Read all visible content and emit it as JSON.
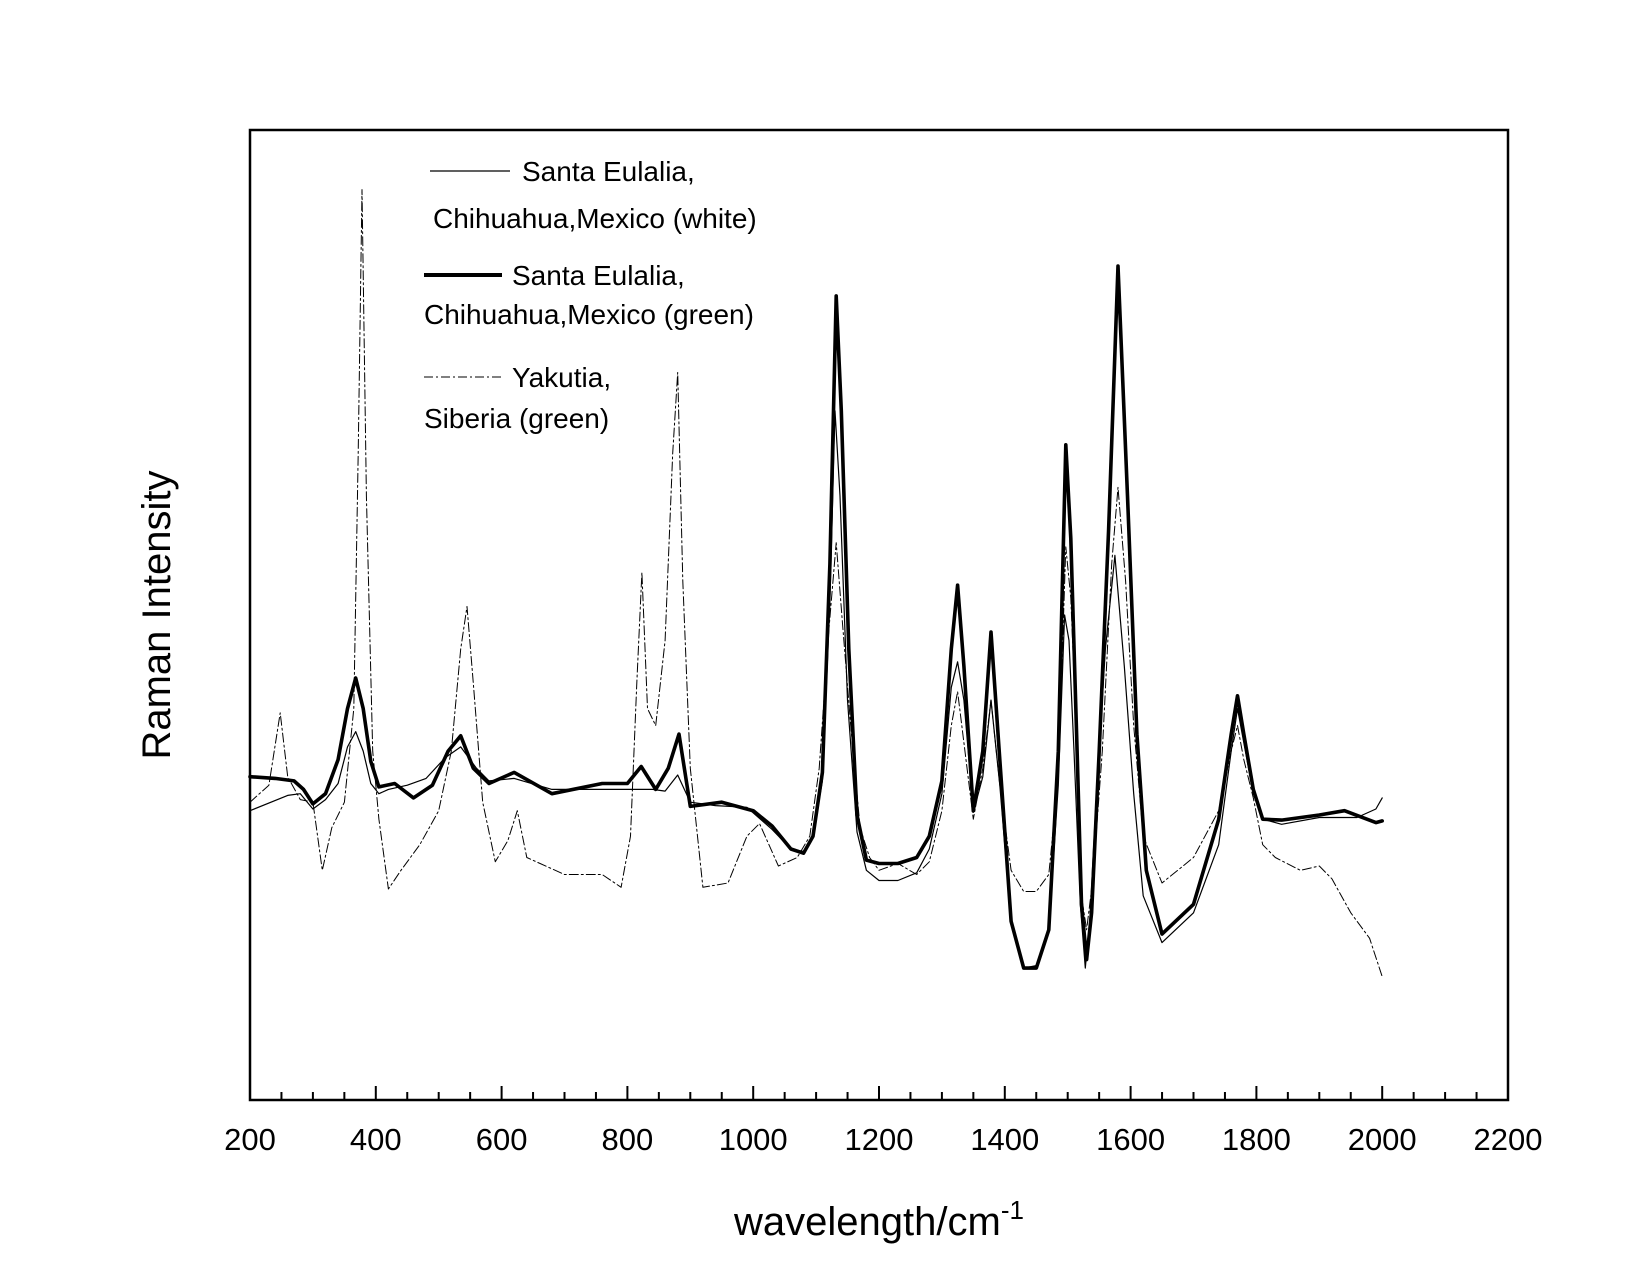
{
  "chart_data": {
    "type": "line",
    "title": "",
    "xlabel": "wavelength/cm",
    "xlabel_superscript": "-1",
    "ylabel": "Raman Intensity",
    "xlim": [
      200,
      2200
    ],
    "ylim": [
      -110,
      1030
    ],
    "x_ticks": [
      200,
      400,
      600,
      800,
      1000,
      1200,
      1400,
      1600,
      1800,
      2000,
      2200
    ],
    "x_minor_tick_step": 50,
    "y_tick_labels": false,
    "grid": false,
    "legend_position": "top-left",
    "series": [
      {
        "name": "Santa Eulalia, Chihuahua,Mexico (white)",
        "legend_lines": [
          "Santa Eulalia,",
          "Chihuahua,Mexico (white)"
        ],
        "style": "thin",
        "color": "#000000",
        "x": [
          200,
          260,
          280,
          300,
          320,
          340,
          355,
          368,
          380,
          392,
          405,
          420,
          450,
          480,
          510,
          535,
          560,
          580,
          620,
          680,
          750,
          800,
          840,
          860,
          880,
          900,
          940,
          990,
          1030,
          1060,
          1080,
          1095,
          1110,
          1122,
          1130,
          1138,
          1150,
          1165,
          1180,
          1200,
          1230,
          1260,
          1280,
          1300,
          1315,
          1325,
          1335,
          1350,
          1365,
          1378,
          1392,
          1410,
          1430,
          1450,
          1470,
          1485,
          1495,
          1502,
          1510,
          1520,
          1528,
          1535,
          1545,
          1560,
          1575,
          1590,
          1605,
          1620,
          1650,
          1700,
          1740,
          1760,
          1770,
          1780,
          1795,
          1810,
          1840,
          1900,
          1960,
          1990,
          2000
        ],
        "y": [
          230,
          248,
          250,
          232,
          243,
          262,
          305,
          323,
          300,
          262,
          250,
          255,
          260,
          268,
          292,
          305,
          280,
          265,
          268,
          255,
          255,
          255,
          255,
          253,
          272,
          240,
          236,
          234,
          208,
          185,
          182,
          200,
          265,
          475,
          700,
          600,
          360,
          205,
          160,
          148,
          148,
          157,
          185,
          250,
          375,
          405,
          360,
          228,
          270,
          360,
          260,
          100,
          45,
          48,
          90,
          260,
          460,
          430,
          300,
          120,
          45,
          100,
          240,
          420,
          530,
          400,
          250,
          130,
          75,
          110,
          190,
          300,
          350,
          310,
          250,
          220,
          214,
          222,
          222,
          232,
          245
        ]
      },
      {
        "name": "Santa Eulalia, Chihuahua,Mexico (green)",
        "legend_lines": [
          "Santa Eulalia,",
          "Chihuahua,Mexico (green)"
        ],
        "style": "thick",
        "color": "#000000",
        "x": [
          200,
          240,
          270,
          285,
          300,
          320,
          340,
          355,
          368,
          380,
          392,
          405,
          430,
          460,
          490,
          515,
          535,
          555,
          580,
          620,
          680,
          760,
          800,
          822,
          845,
          865,
          882,
          900,
          950,
          1000,
          1030,
          1060,
          1080,
          1095,
          1110,
          1122,
          1132,
          1140,
          1152,
          1165,
          1180,
          1200,
          1230,
          1260,
          1280,
          1300,
          1315,
          1325,
          1335,
          1350,
          1365,
          1378,
          1392,
          1410,
          1430,
          1450,
          1470,
          1485,
          1497,
          1505,
          1515,
          1522,
          1530,
          1538,
          1550,
          1565,
          1580,
          1595,
          1610,
          1625,
          1650,
          1700,
          1740,
          1760,
          1770,
          1780,
          1795,
          1810,
          1840,
          1900,
          1940,
          1990,
          2000
        ],
        "y": [
          270,
          268,
          265,
          255,
          238,
          250,
          290,
          350,
          386,
          350,
          288,
          258,
          262,
          245,
          260,
          300,
          318,
          280,
          262,
          275,
          250,
          262,
          262,
          282,
          255,
          280,
          320,
          235,
          240,
          230,
          212,
          185,
          180,
          200,
          275,
          520,
          835,
          700,
          420,
          225,
          172,
          168,
          168,
          175,
          200,
          265,
          420,
          495,
          400,
          230,
          300,
          440,
          290,
          100,
          45,
          45,
          90,
          300,
          660,
          550,
          300,
          120,
          55,
          110,
          300,
          560,
          870,
          600,
          320,
          160,
          85,
          120,
          220,
          320,
          365,
          320,
          255,
          220,
          219,
          225,
          230,
          216,
          218
        ]
      },
      {
        "name": "Yakutia, Siberia (green)",
        "legend_lines": [
          "Yakutia,",
          "Siberia (green)"
        ],
        "style": "dash-dot",
        "color": "#000000",
        "x": [
          200,
          230,
          248,
          260,
          280,
          300,
          315,
          330,
          350,
          365,
          372,
          378,
          385,
          395,
          405,
          420,
          440,
          470,
          500,
          520,
          535,
          545,
          555,
          570,
          590,
          610,
          625,
          640,
          700,
          760,
          790,
          805,
          815,
          823,
          832,
          845,
          860,
          872,
          880,
          888,
          900,
          920,
          960,
          990,
          1010,
          1040,
          1070,
          1090,
          1105,
          1120,
          1132,
          1142,
          1155,
          1170,
          1185,
          1200,
          1230,
          1260,
          1280,
          1300,
          1315,
          1325,
          1335,
          1350,
          1365,
          1378,
          1392,
          1410,
          1430,
          1450,
          1470,
          1485,
          1497,
          1505,
          1515,
          1522,
          1530,
          1540,
          1555,
          1570,
          1580,
          1592,
          1605,
          1620,
          1650,
          1700,
          1740,
          1760,
          1770,
          1780,
          1795,
          1810,
          1830,
          1870,
          1900,
          1920,
          1950,
          1980,
          2000
        ],
        "y": [
          240,
          260,
          345,
          270,
          243,
          240,
          160,
          210,
          240,
          350,
          650,
          960,
          600,
          300,
          220,
          138,
          160,
          190,
          230,
          300,
          420,
          470,
          380,
          240,
          170,
          195,
          230,
          175,
          155,
          155,
          140,
          200,
          380,
          510,
          350,
          330,
          430,
          650,
          745,
          500,
          280,
          140,
          145,
          200,
          215,
          165,
          175,
          200,
          280,
          440,
          545,
          450,
          330,
          210,
          175,
          160,
          168,
          155,
          170,
          230,
          330,
          370,
          310,
          220,
          280,
          360,
          260,
          160,
          135,
          135,
          155,
          270,
          540,
          480,
          300,
          130,
          90,
          150,
          300,
          520,
          610,
          500,
          330,
          200,
          145,
          175,
          230,
          300,
          330,
          290,
          245,
          190,
          175,
          160,
          165,
          150,
          110,
          80,
          35
        ]
      }
    ]
  }
}
